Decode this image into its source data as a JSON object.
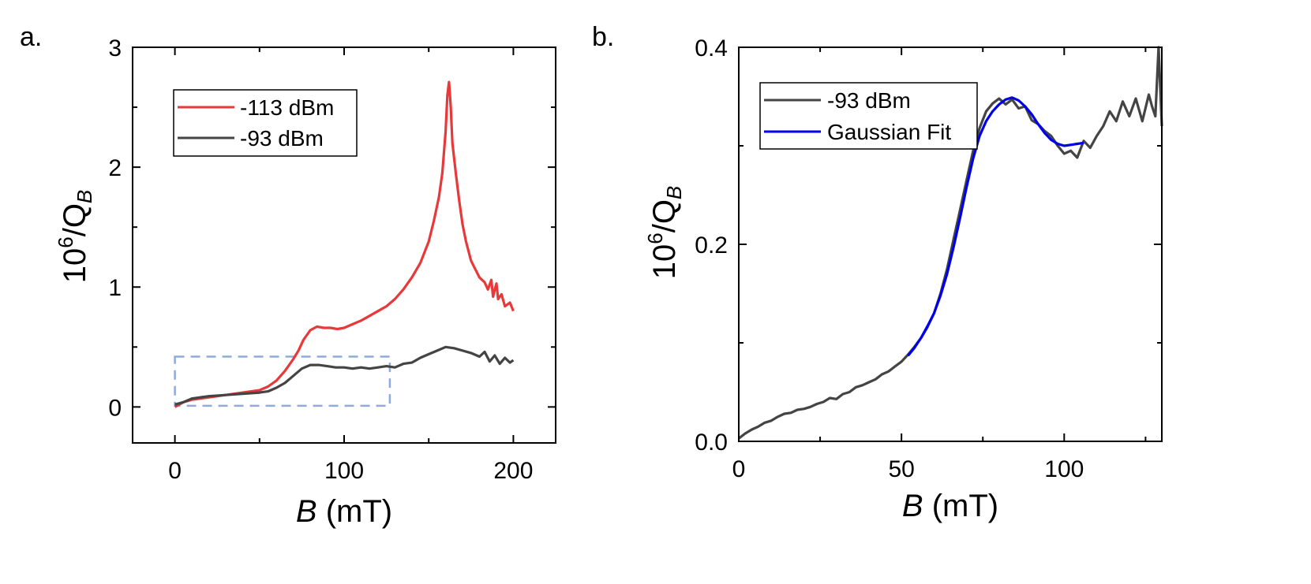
{
  "chart_data": [
    {
      "type": "line",
      "panel_label": "a.",
      "xlabel": "B",
      "xlabel_unit": " (mT)",
      "ylabel_prefix": "10",
      "ylabel_sup": "6",
      "ylabel_mid": "/Q",
      "ylabel_sub": "B",
      "xlim": [
        -25,
        225
      ],
      "ylim": [
        -0.3,
        3
      ],
      "xticks": [
        0,
        100,
        200
      ],
      "xtick_labels": [
        "0",
        "100",
        "200"
      ],
      "yticks": [
        0,
        1,
        2,
        3
      ],
      "ytick_labels": [
        "0",
        "1",
        "2",
        "3"
      ],
      "grid": false,
      "legend_position": "top-left",
      "series": [
        {
          "name": "-113 dBm",
          "color": "#e8393a",
          "x": [
            0,
            5,
            10,
            15,
            20,
            30,
            40,
            50,
            55,
            60,
            65,
            70,
            73,
            76,
            80,
            84,
            88,
            92,
            96,
            100,
            105,
            110,
            115,
            120,
            125,
            130,
            135,
            140,
            145,
            150,
            153,
            156,
            158,
            160,
            161,
            162,
            163,
            164,
            166,
            168,
            170,
            172,
            175,
            180,
            183,
            185,
            187,
            188,
            190,
            191,
            193,
            195,
            198,
            200
          ],
          "y": [
            0.0,
            0.04,
            0.06,
            0.07,
            0.08,
            0.1,
            0.12,
            0.14,
            0.17,
            0.22,
            0.3,
            0.4,
            0.47,
            0.56,
            0.64,
            0.67,
            0.66,
            0.66,
            0.65,
            0.66,
            0.69,
            0.72,
            0.76,
            0.8,
            0.84,
            0.9,
            0.98,
            1.08,
            1.2,
            1.38,
            1.55,
            1.75,
            1.95,
            2.3,
            2.6,
            2.71,
            2.5,
            2.2,
            1.95,
            1.72,
            1.52,
            1.38,
            1.22,
            1.08,
            1.04,
            0.98,
            1.06,
            0.92,
            1.03,
            0.9,
            0.94,
            0.84,
            0.87,
            0.8
          ]
        },
        {
          "name": "-93 dBm",
          "color": "#444444",
          "x": [
            0,
            5,
            10,
            15,
            20,
            30,
            40,
            50,
            55,
            60,
            65,
            70,
            75,
            80,
            85,
            90,
            95,
            100,
            105,
            110,
            115,
            120,
            125,
            130,
            135,
            140,
            145,
            150,
            155,
            160,
            165,
            170,
            175,
            180,
            183,
            186,
            189,
            192,
            195,
            198,
            200
          ],
          "y": [
            0.02,
            0.04,
            0.07,
            0.08,
            0.09,
            0.1,
            0.11,
            0.12,
            0.13,
            0.16,
            0.2,
            0.26,
            0.32,
            0.35,
            0.35,
            0.34,
            0.33,
            0.33,
            0.32,
            0.33,
            0.32,
            0.33,
            0.34,
            0.33,
            0.36,
            0.37,
            0.41,
            0.44,
            0.47,
            0.5,
            0.49,
            0.47,
            0.45,
            0.42,
            0.46,
            0.38,
            0.43,
            0.36,
            0.41,
            0.37,
            0.39
          ]
        }
      ],
      "inset_box": {
        "x0": 0,
        "x1": 127,
        "y0": 0.01,
        "y1": 0.42,
        "color": "#8faadc"
      }
    },
    {
      "type": "line",
      "panel_label": "b.",
      "xlabel": "B",
      "xlabel_unit": " (mT)",
      "ylabel_prefix": "10",
      "ylabel_sup": "6",
      "ylabel_mid": "/Q",
      "ylabel_sub": "B",
      "xlim": [
        0,
        130
      ],
      "ylim": [
        0,
        0.4
      ],
      "xticks": [
        0,
        50,
        100
      ],
      "xtick_labels": [
        "0",
        "50",
        "100"
      ],
      "yticks": [
        0.0,
        0.2,
        0.4
      ],
      "ytick_labels": [
        "0.0",
        "0.2",
        "0.4"
      ],
      "grid": false,
      "legend_position": "top-left",
      "series": [
        {
          "name": "-93 dBm",
          "color": "#444444",
          "x": [
            0,
            2,
            4,
            6,
            8,
            10,
            12,
            14,
            16,
            18,
            20,
            22,
            24,
            26,
            28,
            30,
            32,
            34,
            36,
            38,
            40,
            42,
            44,
            46,
            48,
            50,
            52,
            54,
            56,
            58,
            60,
            62,
            64,
            66,
            68,
            70,
            72,
            74,
            76,
            78,
            80,
            82,
            84,
            86,
            88,
            90,
            92,
            94,
            96,
            98,
            100,
            102,
            104,
            106,
            108,
            110,
            112,
            114,
            116,
            118,
            120,
            122,
            124,
            126,
            127,
            128,
            129,
            130
          ],
          "y": [
            0.003,
            0.008,
            0.012,
            0.015,
            0.019,
            0.021,
            0.025,
            0.028,
            0.029,
            0.032,
            0.033,
            0.035,
            0.038,
            0.04,
            0.044,
            0.043,
            0.048,
            0.05,
            0.055,
            0.057,
            0.06,
            0.063,
            0.068,
            0.071,
            0.076,
            0.081,
            0.088,
            0.096,
            0.105,
            0.116,
            0.13,
            0.15,
            0.175,
            0.205,
            0.235,
            0.265,
            0.295,
            0.318,
            0.335,
            0.343,
            0.348,
            0.342,
            0.347,
            0.338,
            0.34,
            0.326,
            0.322,
            0.315,
            0.31,
            0.3,
            0.292,
            0.295,
            0.288,
            0.305,
            0.298,
            0.31,
            0.32,
            0.335,
            0.325,
            0.345,
            0.33,
            0.348,
            0.325,
            0.352,
            0.34,
            0.33,
            0.4,
            0.32
          ]
        },
        {
          "name": "Gaussian Fit",
          "color": "#0000ee",
          "x": [
            52,
            54,
            56,
            58,
            60,
            62,
            64,
            66,
            68,
            70,
            72,
            74,
            76,
            78,
            80,
            82,
            84,
            86,
            88,
            90,
            92,
            94,
            96,
            98,
            100,
            102,
            104,
            106
          ],
          "y": [
            0.087,
            0.095,
            0.105,
            0.117,
            0.13,
            0.148,
            0.17,
            0.197,
            0.227,
            0.258,
            0.287,
            0.31,
            0.325,
            0.335,
            0.342,
            0.347,
            0.349,
            0.346,
            0.34,
            0.332,
            0.322,
            0.313,
            0.306,
            0.302,
            0.3,
            0.301,
            0.302,
            0.303
          ]
        }
      ]
    }
  ]
}
